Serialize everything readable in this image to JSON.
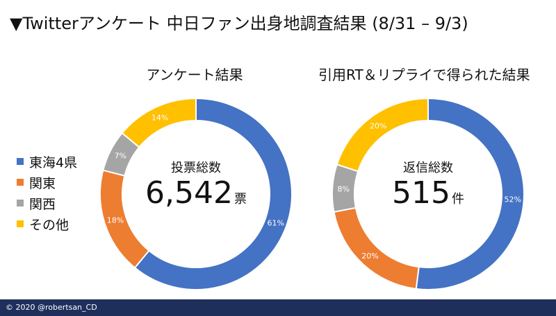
{
  "title": "▼Twitterアンケート 中日ファン出身地調査結果 (8/31 – 9/3)",
  "legend": [
    {
      "label": "東海4県",
      "color": "#4472c4"
    },
    {
      "label": "関東",
      "color": "#ed7d31"
    },
    {
      "label": "関西",
      "color": "#a5a5a5"
    },
    {
      "label": "その他",
      "color": "#ffc000"
    }
  ],
  "chart_data": [
    {
      "type": "pie",
      "title": "アンケート結果",
      "center_caption": "投票総数",
      "center_total": "6,542",
      "center_unit": "票",
      "categories": [
        "東海4県",
        "関東",
        "関西",
        "その他"
      ],
      "values": [
        61,
        18,
        7,
        14
      ],
      "labels": [
        "61%",
        "18%",
        "7%",
        "14%"
      ]
    },
    {
      "type": "pie",
      "title": "引用RT＆リプライで得られた結果",
      "center_caption": "返信総数",
      "center_total": "515",
      "center_unit": "件",
      "categories": [
        "東海4県",
        "関東",
        "関西",
        "その他"
      ],
      "values": [
        52,
        20,
        8,
        20
      ],
      "labels": [
        "52%",
        "20%",
        "8%",
        "20%"
      ]
    }
  ],
  "footer": {
    "text": "© 2020 @robertsan_CD"
  }
}
